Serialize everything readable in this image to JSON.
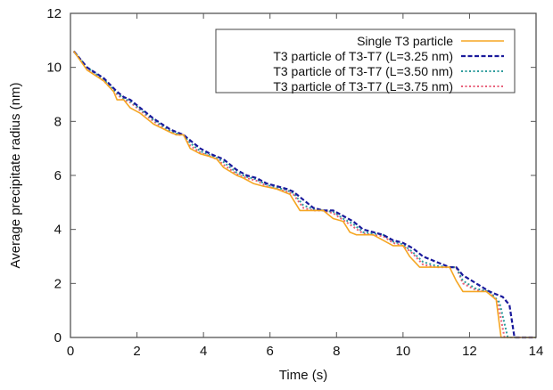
{
  "chart_data": {
    "type": "line",
    "title": "",
    "xlabel": "Time (s)",
    "ylabel": "Average precipitate radius (nm)",
    "xlim": [
      0,
      14
    ],
    "ylim": [
      0,
      12
    ],
    "xticks": [
      0,
      2,
      4,
      6,
      8,
      10,
      12,
      14
    ],
    "yticks": [
      0,
      2,
      4,
      6,
      8,
      10,
      12
    ],
    "xtick_labels": [
      "0",
      "2",
      "4",
      "6",
      "8",
      "10",
      "12",
      "14"
    ],
    "ytick_labels": [
      "0",
      "2",
      "4",
      "6",
      "8",
      "10",
      "12"
    ],
    "grid": false,
    "legend_position": "top-right",
    "series": [
      {
        "name": "Single T3 particle",
        "color": "#f5a623",
        "style": "solid",
        "x": [
          0.1,
          0.5,
          1.0,
          1.3,
          1.4,
          1.6,
          1.8,
          2.1,
          2.5,
          3.0,
          3.2,
          3.4,
          3.6,
          3.9,
          4.2,
          4.4,
          4.6,
          5.0,
          5.2,
          5.5,
          5.8,
          6.2,
          6.4,
          6.6,
          6.9,
          7.3,
          7.6,
          7.9,
          8.2,
          8.4,
          8.6,
          9.1,
          9.4,
          9.7,
          10.0,
          10.2,
          10.5,
          11.0,
          11.4,
          11.6,
          11.8,
          12.5,
          12.8,
          12.95,
          14.0
        ],
        "y": [
          10.6,
          9.9,
          9.5,
          9.1,
          8.8,
          8.8,
          8.5,
          8.3,
          7.9,
          7.6,
          7.5,
          7.5,
          7.0,
          6.8,
          6.7,
          6.6,
          6.3,
          6.0,
          5.9,
          5.7,
          5.6,
          5.5,
          5.4,
          5.3,
          4.7,
          4.7,
          4.7,
          4.4,
          4.3,
          3.9,
          3.8,
          3.8,
          3.6,
          3.4,
          3.4,
          3.0,
          2.6,
          2.6,
          2.6,
          2.1,
          1.7,
          1.7,
          1.4,
          0.0,
          0.0
        ]
      },
      {
        "name": "T3 particle of T3-T7 (L=3.25 nm)",
        "color": "#1a1a9c",
        "style": "dashed",
        "x": [
          0.1,
          0.5,
          1.0,
          1.4,
          1.6,
          1.8,
          2.1,
          2.5,
          3.0,
          3.2,
          3.4,
          3.6,
          3.9,
          4.2,
          4.4,
          4.6,
          5.0,
          5.3,
          5.6,
          5.9,
          6.2,
          6.5,
          6.7,
          7.0,
          7.3,
          7.6,
          7.9,
          8.2,
          8.5,
          8.8,
          9.1,
          9.4,
          9.7,
          10.0,
          10.3,
          10.6,
          11.0,
          11.4,
          11.6,
          11.8,
          12.2,
          12.6,
          13.0,
          13.2,
          13.35,
          14.0
        ],
        "y": [
          10.6,
          10.0,
          9.6,
          9.1,
          8.9,
          8.8,
          8.5,
          8.1,
          7.7,
          7.6,
          7.5,
          7.3,
          7.0,
          6.8,
          6.7,
          6.6,
          6.2,
          6.0,
          5.9,
          5.7,
          5.6,
          5.5,
          5.4,
          5.1,
          4.8,
          4.7,
          4.7,
          4.5,
          4.3,
          4.0,
          3.9,
          3.8,
          3.6,
          3.5,
          3.3,
          3.0,
          2.8,
          2.6,
          2.6,
          2.3,
          2.0,
          1.7,
          1.5,
          1.2,
          0.0,
          0.0
        ]
      },
      {
        "name": "T3 particle of T3-T7 (L=3.50 nm)",
        "color": "#2e9c9c",
        "style": "dotted",
        "x": [
          0.1,
          0.5,
          1.0,
          1.4,
          1.6,
          1.8,
          2.1,
          2.5,
          3.0,
          3.2,
          3.4,
          3.6,
          3.9,
          4.2,
          4.4,
          4.6,
          5.0,
          5.3,
          5.6,
          5.9,
          6.2,
          6.5,
          6.7,
          7.0,
          7.3,
          7.6,
          7.9,
          8.2,
          8.5,
          8.8,
          9.1,
          9.4,
          9.7,
          10.0,
          10.3,
          10.6,
          11.0,
          11.4,
          11.6,
          11.8,
          12.2,
          12.6,
          12.9,
          13.15,
          14.0
        ],
        "y": [
          10.6,
          10.0,
          9.55,
          9.05,
          8.85,
          8.75,
          8.45,
          8.05,
          7.65,
          7.55,
          7.5,
          7.2,
          6.9,
          6.75,
          6.65,
          6.5,
          6.1,
          5.95,
          5.85,
          5.65,
          5.55,
          5.45,
          5.35,
          4.9,
          4.75,
          4.7,
          4.65,
          4.4,
          4.2,
          3.9,
          3.85,
          3.8,
          3.55,
          3.45,
          3.15,
          2.8,
          2.65,
          2.6,
          2.6,
          2.1,
          1.8,
          1.7,
          1.3,
          0.0,
          0.0
        ]
      },
      {
        "name": "T3 particle of T3-T7 (L=3.75 nm)",
        "color": "#e8607a",
        "style": "dotted",
        "x": [
          0.1,
          0.5,
          1.0,
          1.4,
          1.6,
          1.8,
          2.1,
          2.5,
          3.0,
          3.2,
          3.4,
          3.6,
          3.9,
          4.2,
          4.4,
          4.6,
          5.0,
          5.3,
          5.6,
          5.9,
          6.2,
          6.5,
          6.7,
          7.0,
          7.3,
          7.6,
          7.9,
          8.2,
          8.5,
          8.8,
          9.1,
          9.4,
          9.7,
          10.0,
          10.3,
          10.6,
          11.0,
          11.4,
          11.6,
          11.8,
          12.2,
          12.6,
          12.85,
          13.05,
          14.0
        ],
        "y": [
          10.6,
          9.95,
          9.5,
          9.0,
          8.8,
          8.7,
          8.4,
          8.0,
          7.6,
          7.5,
          7.5,
          7.1,
          6.85,
          6.7,
          6.6,
          6.4,
          6.05,
          5.9,
          5.8,
          5.6,
          5.5,
          5.4,
          5.3,
          4.8,
          4.7,
          4.7,
          4.6,
          4.35,
          4.1,
          3.85,
          3.8,
          3.75,
          3.5,
          3.4,
          3.1,
          2.7,
          2.6,
          2.6,
          2.6,
          2.0,
          1.75,
          1.7,
          1.3,
          0.0,
          0.0
        ]
      }
    ]
  }
}
